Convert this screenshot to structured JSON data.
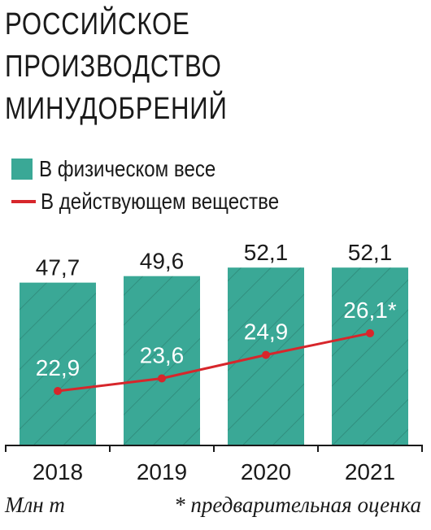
{
  "title_lines": [
    "РОССИЙСКОЕ",
    "ПРОИЗВОДСТВО",
    "МИНУДОБРЕНИЙ"
  ],
  "legend": {
    "bars_label": "В физическом весе",
    "line_label": "В действующем веществе"
  },
  "footer": {
    "unit": "Млн т",
    "note": "* предварительная оценка"
  },
  "colors": {
    "bar": "#3aa896",
    "hatch": "#2e8677",
    "line": "#d7262b",
    "axis": "#1a1a1a"
  },
  "chart_data": {
    "type": "bar",
    "categories": [
      "2018",
      "2019",
      "2020",
      "2021"
    ],
    "series": [
      {
        "name": "В физическом весе",
        "type": "bar",
        "values": [
          47.7,
          49.6,
          52.1,
          52.1
        ],
        "labels": [
          "47,7",
          "49,6",
          "52,1",
          "52,1"
        ]
      },
      {
        "name": "В действующем веществе",
        "type": "line",
        "values": [
          22.9,
          23.6,
          24.9,
          26.1
        ],
        "labels": [
          "22,9",
          "23,6",
          "24,9",
          "26,1*"
        ]
      }
    ],
    "xlabel": "",
    "ylabel": "Млн т",
    "ylim": [
      0,
      55
    ],
    "grid": false,
    "legend": "top-left"
  }
}
